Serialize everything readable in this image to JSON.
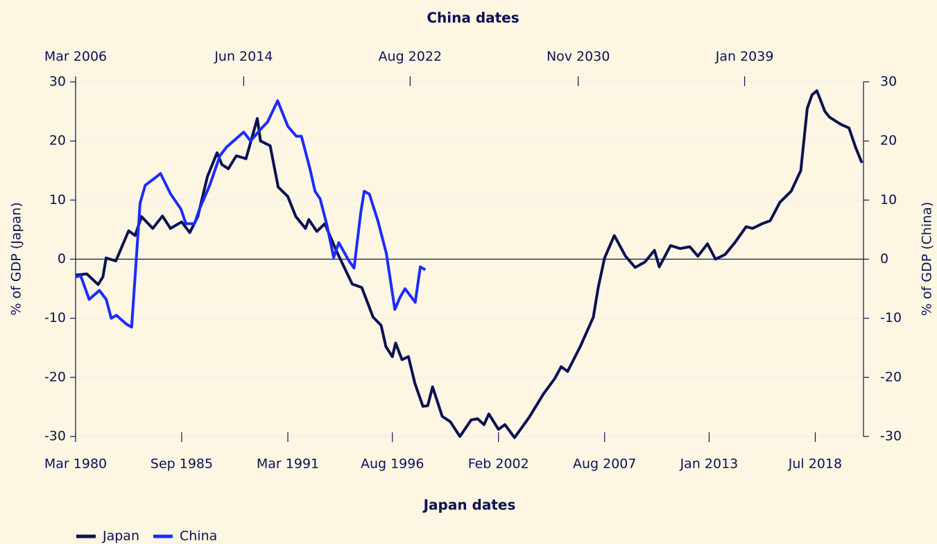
{
  "chart_data": {
    "type": "line",
    "xlabel": "Japan dates",
    "x2label": "China dates",
    "ylabel": "% of GDP (Japan)",
    "y2label": "% of GDP (China)",
    "xlim": [
      "1980-03",
      "2021-01"
    ],
    "xticks": [
      {
        "value": "1980-03",
        "label": "Mar 1980"
      },
      {
        "value": "1985-09",
        "label": "Sep 1985"
      },
      {
        "value": "1991-03",
        "label": "Mar 1991"
      },
      {
        "value": "1996-08",
        "label": "Aug 1996"
      },
      {
        "value": "2002-02",
        "label": "Feb 2002"
      },
      {
        "value": "2007-08",
        "label": "Aug 2007"
      },
      {
        "value": "2013-01",
        "label": "Jan 2013"
      },
      {
        "value": "2018-07",
        "label": "Jul 2018"
      }
    ],
    "x2lim": [
      "2006-03",
      "2044-11"
    ],
    "x2ticks": [
      {
        "value": "2006-03",
        "label": "Mar 2006"
      },
      {
        "value": "2014-06",
        "label": "Jun 2014"
      },
      {
        "value": "2022-08",
        "label": "Aug 2022"
      },
      {
        "value": "2030-11",
        "label": "Nov 2030"
      },
      {
        "value": "2039-01",
        "label": "Jan 2039"
      }
    ],
    "ylim": [
      -30,
      30
    ],
    "yticks": [
      -30,
      -20,
      -10,
      0,
      10,
      20,
      30
    ],
    "y2lim": [
      -30,
      30
    ],
    "y2ticks": [
      -30,
      -20,
      -10,
      0,
      10,
      20,
      30
    ],
    "grid": true,
    "hline": 0,
    "legend": "bottom-left",
    "series": [
      {
        "name": "Japan",
        "color": "#0b1153",
        "xaxis": "x",
        "x": [
          "1980-03",
          "1980-10",
          "1981-05",
          "1981-08",
          "1981-10",
          "1982-04",
          "1982-12",
          "1983-04",
          "1983-08",
          "1984-03",
          "1984-09",
          "1985-02",
          "1985-09",
          "1986-02",
          "1986-07",
          "1987-01",
          "1987-07",
          "1987-10",
          "1988-02",
          "1988-07",
          "1989-01",
          "1989-08",
          "1989-10",
          "1990-04",
          "1990-09",
          "1991-03",
          "1991-08",
          "1992-02",
          "1992-04",
          "1992-09",
          "1993-02",
          "1993-09",
          "1994-07",
          "1995-01",
          "1995-08",
          "1996-01",
          "1996-04",
          "1996-08",
          "1996-10",
          "1997-02",
          "1997-06",
          "1997-10",
          "1998-03",
          "1998-06",
          "1998-09",
          "1999-03",
          "1999-08",
          "2000-02",
          "2000-09",
          "2001-01",
          "2001-05",
          "2001-08",
          "2002-02",
          "2002-06",
          "2002-12",
          "2003-09",
          "2004-06",
          "2005-01",
          "2005-05",
          "2005-09",
          "2006-05",
          "2007-01",
          "2007-04",
          "2007-08",
          "2008-02",
          "2008-09",
          "2009-03",
          "2009-09",
          "2010-03",
          "2010-06",
          "2011-01",
          "2011-07",
          "2012-01",
          "2012-06",
          "2012-12",
          "2013-05",
          "2013-11",
          "2014-05",
          "2014-12",
          "2015-04",
          "2015-10",
          "2016-03",
          "2016-09",
          "2017-04",
          "2017-10",
          "2018-02",
          "2018-05",
          "2018-08",
          "2019-01",
          "2019-04",
          "2019-11",
          "2020-04",
          "2020-08",
          "2020-12"
        ],
        "values": [
          -2.7,
          -2.5,
          -4.3,
          -3,
          0.2,
          -0.3,
          4.8,
          4,
          7.2,
          5.2,
          7.3,
          5.2,
          6.3,
          4.5,
          7.2,
          14,
          18,
          16,
          15.3,
          17.5,
          17,
          23.8,
          20,
          19.2,
          12.2,
          10.6,
          7.2,
          5.2,
          6.7,
          4.7,
          6,
          1.5,
          -4.2,
          -4.8,
          -9.8,
          -11.2,
          -14.8,
          -16.5,
          -14.2,
          -17,
          -16.5,
          -21,
          -24.9,
          -24.8,
          -21.6,
          -26.6,
          -27.5,
          -30,
          -27.2,
          -27,
          -28,
          -26.2,
          -28.8,
          -28,
          -30.2,
          -26.8,
          -22.8,
          -20.2,
          -18.2,
          -19,
          -14.7,
          -9.8,
          -4.8,
          0.2,
          4,
          0.5,
          -1.4,
          -0.5,
          1.5,
          -1.3,
          2.3,
          1.8,
          2.1,
          0.5,
          2.6,
          0,
          0.8,
          2.8,
          5.5,
          5.2,
          6,
          6.5,
          9.6,
          11.5,
          15,
          25.5,
          27.8,
          28.5,
          25,
          24,
          22.8,
          22.2,
          19,
          16.3
        ]
      },
      {
        "name": "China",
        "color": "#1a2cff",
        "xaxis": "x2",
        "axis": "y2",
        "x": [
          "2006-03",
          "2006-06",
          "2006-11",
          "2007-05",
          "2007-09",
          "2007-12",
          "2008-03",
          "2008-09",
          "2008-12",
          "2009-05",
          "2009-08",
          "2010-02",
          "2010-05",
          "2010-11",
          "2011-05",
          "2011-08",
          "2012-01",
          "2012-04",
          "2012-10",
          "2013-04",
          "2013-08",
          "2014-02",
          "2014-06",
          "2014-10",
          "2015-04",
          "2015-08",
          "2016-02",
          "2016-08",
          "2017-01",
          "2017-04",
          "2017-09",
          "2017-12",
          "2018-03",
          "2018-07",
          "2018-11",
          "2019-02",
          "2019-08",
          "2019-11",
          "2020-03",
          "2020-05",
          "2020-08",
          "2021-01",
          "2021-06",
          "2021-11",
          "2022-02",
          "2022-05",
          "2022-11",
          "2023-02",
          "2023-05"
        ],
        "values": [
          -3,
          -2.8,
          -6.8,
          -5.3,
          -6.8,
          -10,
          -9.5,
          -11,
          -11.5,
          9.5,
          12.5,
          13.8,
          14.5,
          11,
          8.5,
          6,
          6,
          8.5,
          12.5,
          17.5,
          19,
          20.5,
          21.5,
          20,
          22,
          23.2,
          26.8,
          22.5,
          20.8,
          20.8,
          15.3,
          11.5,
          10.2,
          5.8,
          0.3,
          2.8,
          -0.3,
          -1.5,
          8,
          11.5,
          11,
          6.5,
          1,
          -8.5,
          -6.5,
          -5,
          -7.3,
          -1.3,
          -1.8
        ]
      }
    ]
  }
}
